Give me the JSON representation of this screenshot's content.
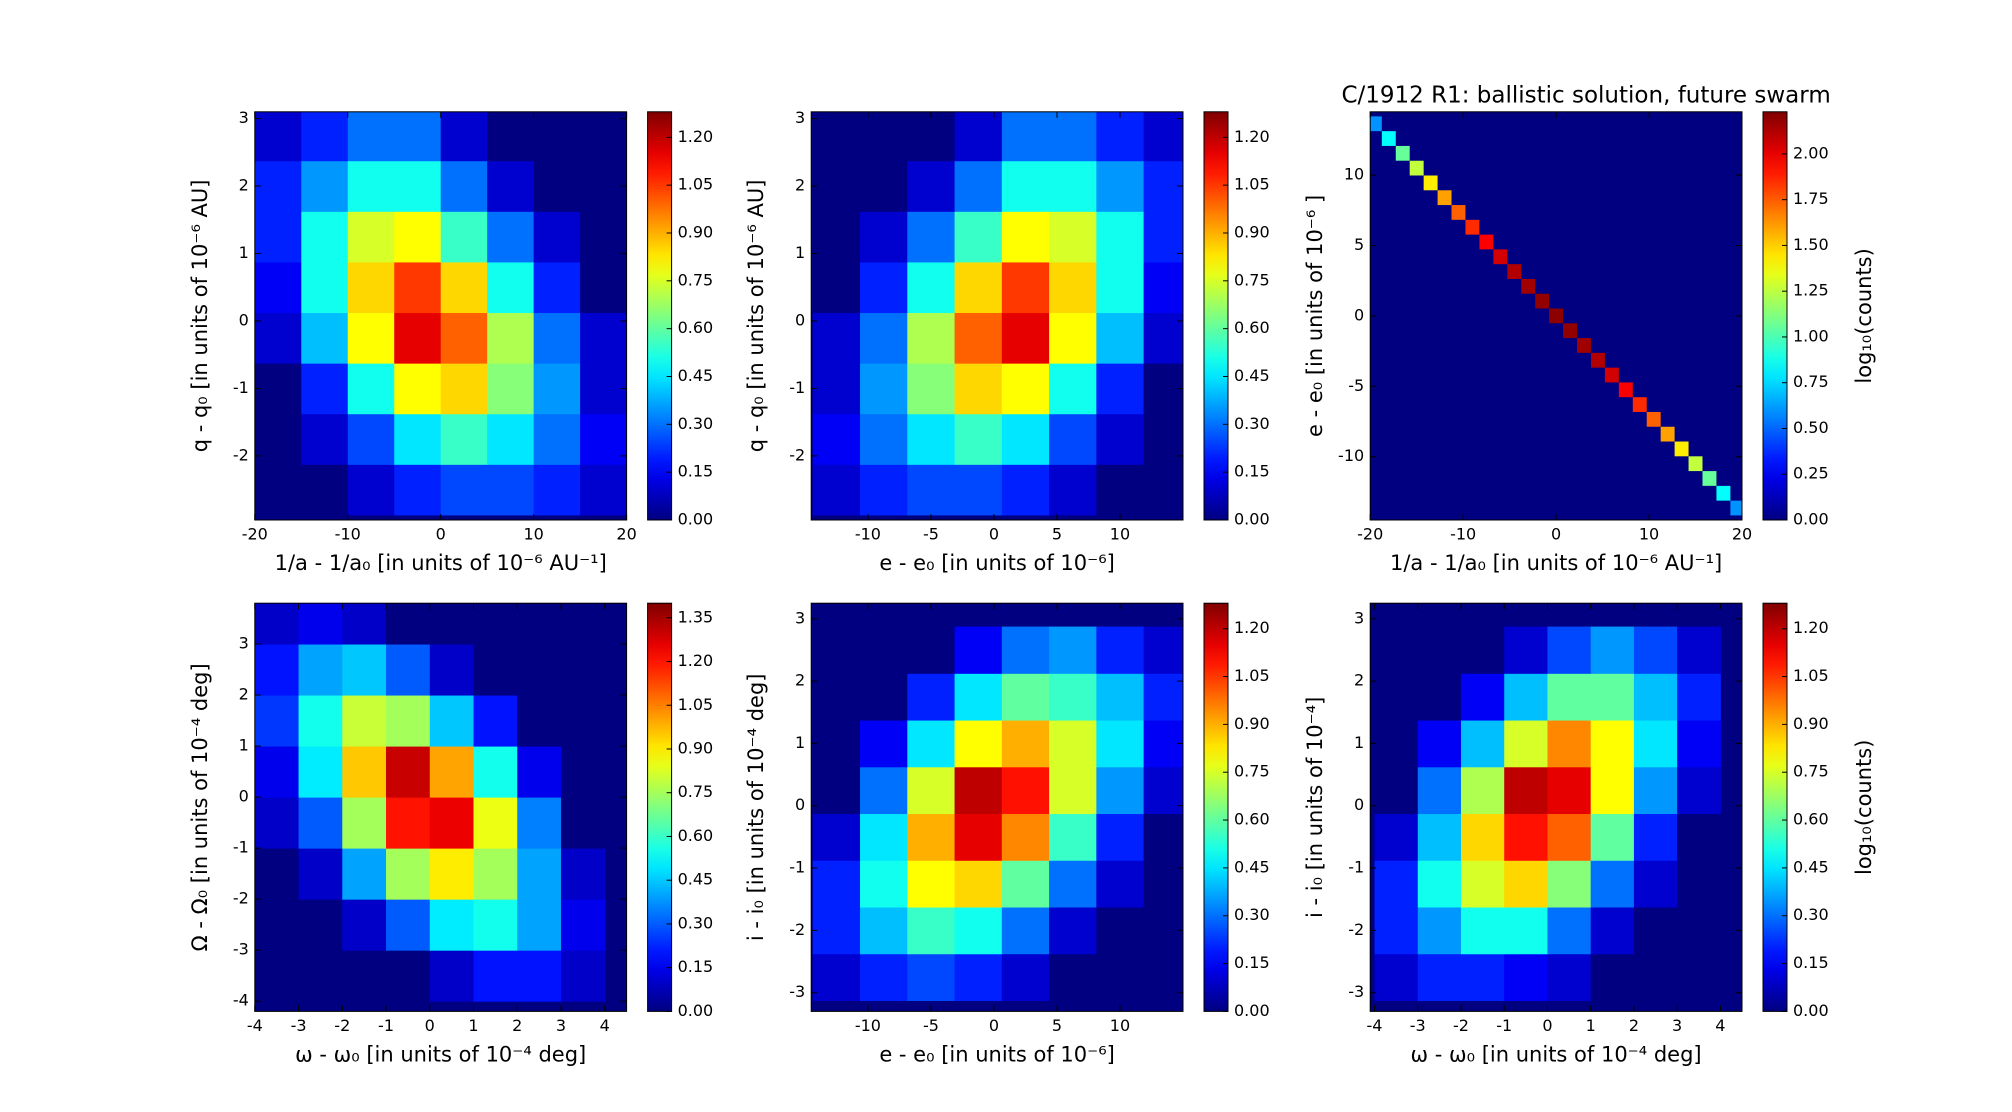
{
  "chart_data": [
    {
      "type": "hexbin",
      "xlabel": "1/a - 1/a₀ [in units of 10⁻⁶ AU⁻¹]",
      "ylabel": "q - q₀ [in units of 10⁻⁶ AU]",
      "xlim": [
        -20,
        20
      ],
      "ylim": [
        -2.95,
        3.1
      ],
      "xticks": [
        -20,
        -10,
        0,
        10,
        20
      ],
      "yticks": [
        -2,
        -1,
        0,
        1,
        2,
        3
      ],
      "x": [
        -17.5,
        -12.5,
        -7.5,
        -2.5,
        2.5,
        7.5,
        12.5,
        17.5
      ],
      "y": [
        -2.5,
        -1.75,
        -1,
        -0.25,
        0.5,
        1.25,
        2,
        2.75
      ],
      "values": [
        [
          0,
          0,
          0.1,
          0.2,
          0.25,
          0.25,
          0.2,
          0.1
        ],
        [
          0,
          0.1,
          0.25,
          0.45,
          0.55,
          0.45,
          0.3,
          0.15
        ],
        [
          0,
          0.2,
          0.5,
          0.8,
          0.85,
          0.65,
          0.35,
          0.1
        ],
        [
          0.1,
          0.4,
          0.8,
          1.15,
          1.0,
          0.7,
          0.3,
          0.1
        ],
        [
          0.15,
          0.5,
          0.85,
          1.05,
          0.85,
          0.5,
          0.2,
          0
        ],
        [
          0.2,
          0.5,
          0.75,
          0.8,
          0.55,
          0.3,
          0.1,
          0
        ],
        [
          0.2,
          0.35,
          0.5,
          0.5,
          0.3,
          0.1,
          0,
          0
        ],
        [
          0.1,
          0.2,
          0.3,
          0.3,
          0.1,
          0,
          0,
          0
        ]
      ],
      "colorbar": {
        "lim": [
          0,
          1.28
        ],
        "ticks": [
          {
            "value": 0,
            "label": "0.00"
          },
          {
            "value": 0.15,
            "label": "0.15"
          },
          {
            "value": 0.3,
            "label": "0.30"
          },
          {
            "value": 0.45,
            "label": "0.45"
          },
          {
            "value": 0.6,
            "label": "0.60"
          },
          {
            "value": 0.75,
            "label": "0.75"
          },
          {
            "value": 0.9,
            "label": "0.90"
          },
          {
            "value": 1.05,
            "label": "1.05"
          },
          {
            "value": 1.2,
            "label": "1.20"
          }
        ]
      }
    },
    {
      "type": "hexbin",
      "xlabel": "e - e₀ [in units of 10⁻⁶]",
      "ylabel": "q - q₀ [in units of 10⁻⁶ AU]",
      "xlim": [
        -14.5,
        15
      ],
      "ylim": [
        -2.95,
        3.1
      ],
      "xticks": [
        -10,
        -5,
        0,
        5,
        10
      ],
      "yticks": [
        -2,
        -1,
        0,
        1,
        2,
        3
      ],
      "x": [
        -12.5,
        -8.75,
        -5,
        -1.25,
        2.5,
        6.25,
        10,
        13.75
      ],
      "y": [
        -2.5,
        -1.75,
        -1,
        -0.25,
        0.5,
        1.25,
        2,
        2.75
      ],
      "values": [
        [
          0.1,
          0.2,
          0.25,
          0.25,
          0.2,
          0.1,
          0,
          0
        ],
        [
          0.15,
          0.3,
          0.45,
          0.55,
          0.45,
          0.25,
          0.1,
          0
        ],
        [
          0.1,
          0.35,
          0.65,
          0.85,
          0.8,
          0.5,
          0.2,
          0
        ],
        [
          0.1,
          0.3,
          0.7,
          1.0,
          1.15,
          0.8,
          0.4,
          0.1
        ],
        [
          0,
          0.2,
          0.5,
          0.85,
          1.05,
          0.85,
          0.5,
          0.15
        ],
        [
          0,
          0.1,
          0.3,
          0.55,
          0.8,
          0.75,
          0.5,
          0.2
        ],
        [
          0,
          0,
          0.1,
          0.3,
          0.5,
          0.5,
          0.35,
          0.2
        ],
        [
          0,
          0,
          0,
          0.1,
          0.3,
          0.3,
          0.2,
          0.1
        ]
      ],
      "colorbar": {
        "lim": [
          0,
          1.28
        ],
        "ticks": [
          {
            "value": 0,
            "label": "0.00"
          },
          {
            "value": 0.15,
            "label": "0.15"
          },
          {
            "value": 0.3,
            "label": "0.30"
          },
          {
            "value": 0.45,
            "label": "0.45"
          },
          {
            "value": 0.6,
            "label": "0.60"
          },
          {
            "value": 0.75,
            "label": "0.75"
          },
          {
            "value": 0.9,
            "label": "0.90"
          },
          {
            "value": 1.05,
            "label": "1.05"
          },
          {
            "value": 1.2,
            "label": "1.20"
          }
        ]
      }
    },
    {
      "type": "hexbin",
      "title": "C/1912 R1:  ballistic solution, future swarm",
      "xlabel": "1/a - 1/a₀ [in units of 10⁻⁶ AU⁻¹]",
      "ylabel": "e - e₀ [in units of 10⁻⁶ ]",
      "xlim": [
        -20,
        20
      ],
      "ylim": [
        -14.5,
        14.5
      ],
      "xticks": [
        -20,
        -10,
        0,
        10,
        20
      ],
      "yticks": [
        -10,
        -5,
        0,
        5,
        10
      ],
      "x": [
        -19.5,
        -18,
        -16.5,
        -15,
        -13.5,
        -12,
        -10.5,
        -9,
        -7.5,
        -6,
        -4.5,
        -3,
        -1.5,
        0,
        1.5,
        3,
        4.5,
        6,
        7.5,
        9,
        10.5,
        12,
        13.5,
        15,
        16.5,
        18,
        19.5
      ],
      "y": [
        13.65,
        12.6,
        11.55,
        10.5,
        9.45,
        8.4,
        7.35,
        6.3,
        5.25,
        4.2,
        3.15,
        2.1,
        1.05,
        0,
        -1.05,
        -2.1,
        -3.15,
        -4.2,
        -5.25,
        -6.3,
        -7.35,
        -8.4,
        -9.45,
        -10.5,
        -11.55,
        -12.6,
        -13.65
      ],
      "values": [
        0.6,
        0.84,
        1.06,
        1.26,
        1.43,
        1.6,
        1.74,
        1.86,
        1.96,
        2.05,
        2.12,
        2.16,
        2.19,
        2.2,
        2.19,
        2.16,
        2.12,
        2.05,
        1.96,
        1.86,
        1.74,
        1.6,
        1.43,
        1.26,
        1.06,
        0.84,
        0.6
      ],
      "colorbar": {
        "lim": [
          0,
          2.23
        ],
        "label": "log₁₀(counts)",
        "ticks": [
          {
            "value": 0,
            "label": "0.00"
          },
          {
            "value": 0.25,
            "label": "0.25"
          },
          {
            "value": 0.5,
            "label": "0.50"
          },
          {
            "value": 0.75,
            "label": "0.75"
          },
          {
            "value": 1,
            "label": "1.00"
          },
          {
            "value": 1.25,
            "label": "1.25"
          },
          {
            "value": 1.5,
            "label": "1.50"
          },
          {
            "value": 1.75,
            "label": "1.75"
          },
          {
            "value": 2,
            "label": "2.00"
          }
        ]
      }
    },
    {
      "type": "hexbin",
      "xlabel": "ω - ω₀ [in units of 10⁻⁴ deg]",
      "ylabel": "Ω - Ω₀ [in units of 10⁻⁴ deg]",
      "xlim": [
        -4,
        4.5
      ],
      "ylim": [
        -4.2,
        3.8
      ],
      "xticks": [
        -4,
        -3,
        -2,
        -1,
        0,
        1,
        2,
        3,
        4
      ],
      "yticks": [
        -4,
        -3,
        -2,
        -1,
        0,
        1,
        2,
        3
      ],
      "x": [
        -3.5,
        -2.5,
        -1.5,
        -0.5,
        0.5,
        1.5,
        2.5,
        3.5
      ],
      "y": [
        -3.5,
        -2.5,
        -1.5,
        -0.5,
        0.5,
        1.5,
        2.5,
        3.5
      ],
      "values": [
        [
          0,
          0,
          0,
          0,
          0.1,
          0.2,
          0.2,
          0.1
        ],
        [
          0,
          0,
          0.1,
          0.3,
          0.5,
          0.55,
          0.4,
          0.15
        ],
        [
          0,
          0.1,
          0.4,
          0.75,
          0.9,
          0.75,
          0.4,
          0.1
        ],
        [
          0.1,
          0.3,
          0.75,
          1.2,
          1.25,
          0.85,
          0.35,
          0
        ],
        [
          0.15,
          0.5,
          0.95,
          1.3,
          1.0,
          0.55,
          0.15,
          0
        ],
        [
          0.25,
          0.55,
          0.8,
          0.75,
          0.45,
          0.2,
          0,
          0
        ],
        [
          0.2,
          0.4,
          0.45,
          0.3,
          0.1,
          0,
          0,
          0
        ],
        [
          0.1,
          0.15,
          0.1,
          0,
          0,
          0,
          0,
          0
        ]
      ],
      "colorbar": {
        "lim": [
          0,
          1.4
        ],
        "ticks": [
          {
            "value": 0,
            "label": "0.00"
          },
          {
            "value": 0.15,
            "label": "0.15"
          },
          {
            "value": 0.3,
            "label": "0.30"
          },
          {
            "value": 0.45,
            "label": "0.45"
          },
          {
            "value": 0.6,
            "label": "0.60"
          },
          {
            "value": 0.75,
            "label": "0.75"
          },
          {
            "value": 0.9,
            "label": "0.90"
          },
          {
            "value": 1.05,
            "label": "1.05"
          },
          {
            "value": 1.2,
            "label": "1.20"
          },
          {
            "value": 1.35,
            "label": "1.35"
          }
        ]
      }
    },
    {
      "type": "hexbin",
      "xlabel": "e - e₀ [in units of 10⁻⁶]",
      "ylabel": "i - i₀ [in units of 10⁻⁴ deg]",
      "xlim": [
        -14.5,
        15
      ],
      "ylim": [
        -3.3,
        3.25
      ],
      "xticks": [
        -10,
        -5,
        0,
        5,
        10
      ],
      "yticks": [
        -3,
        -2,
        -1,
        0,
        1,
        2,
        3
      ],
      "x": [
        -12.5,
        -8.75,
        -5,
        -1.25,
        2.5,
        6.25,
        10,
        13.75
      ],
      "y": [
        -2.75,
        -2,
        -1.25,
        -0.5,
        0.25,
        1,
        1.75,
        2.5
      ],
      "values": [
        [
          0.1,
          0.2,
          0.25,
          0.2,
          0.1,
          0,
          0,
          0
        ],
        [
          0.2,
          0.4,
          0.55,
          0.5,
          0.3,
          0.1,
          0,
          0
        ],
        [
          0.2,
          0.5,
          0.8,
          0.85,
          0.6,
          0.3,
          0.1,
          0
        ],
        [
          0.1,
          0.45,
          0.9,
          1.15,
          0.95,
          0.55,
          0.2,
          0
        ],
        [
          0,
          0.3,
          0.75,
          1.2,
          1.1,
          0.75,
          0.35,
          0.1
        ],
        [
          0,
          0.15,
          0.45,
          0.8,
          0.9,
          0.75,
          0.45,
          0.15
        ],
        [
          0,
          0,
          0.2,
          0.45,
          0.6,
          0.55,
          0.4,
          0.2
        ],
        [
          0,
          0,
          0,
          0.15,
          0.3,
          0.35,
          0.2,
          0.1
        ]
      ],
      "colorbar": {
        "lim": [
          0,
          1.28
        ],
        "ticks": [
          {
            "value": 0,
            "label": "0.00"
          },
          {
            "value": 0.15,
            "label": "0.15"
          },
          {
            "value": 0.3,
            "label": "0.30"
          },
          {
            "value": 0.45,
            "label": "0.45"
          },
          {
            "value": 0.6,
            "label": "0.60"
          },
          {
            "value": 0.75,
            "label": "0.75"
          },
          {
            "value": 0.9,
            "label": "0.90"
          },
          {
            "value": 1.05,
            "label": "1.05"
          },
          {
            "value": 1.2,
            "label": "1.20"
          }
        ]
      }
    },
    {
      "type": "hexbin",
      "xlabel": "ω - ω₀ [in units of 10⁻⁴ deg]",
      "ylabel": "i - i₀ [in units of 10⁻⁴]",
      "xlim": [
        -4.1,
        4.5
      ],
      "ylim": [
        -3.3,
        3.25
      ],
      "xticks": [
        -4,
        -3,
        -2,
        -1,
        0,
        1,
        2,
        3,
        4
      ],
      "yticks": [
        -3,
        -2,
        -1,
        0,
        1,
        2,
        3
      ],
      "x": [
        -3.5,
        -2.5,
        -1.5,
        -0.5,
        0.5,
        1.5,
        2.5,
        3.5
      ],
      "y": [
        -2.75,
        -2,
        -1.25,
        -0.5,
        0.25,
        1,
        1.75,
        2.5
      ],
      "values": [
        [
          0.1,
          0.2,
          0.2,
          0.15,
          0.1,
          0,
          0,
          0
        ],
        [
          0.2,
          0.35,
          0.5,
          0.5,
          0.3,
          0.1,
          0,
          0
        ],
        [
          0.2,
          0.5,
          0.75,
          0.85,
          0.65,
          0.3,
          0.1,
          0
        ],
        [
          0.1,
          0.4,
          0.85,
          1.1,
          1.0,
          0.6,
          0.2,
          0
        ],
        [
          0,
          0.3,
          0.7,
          1.2,
          1.15,
          0.8,
          0.35,
          0.1
        ],
        [
          0,
          0.15,
          0.4,
          0.75,
          0.95,
          0.8,
          0.45,
          0.15
        ],
        [
          0,
          0,
          0.15,
          0.4,
          0.6,
          0.6,
          0.4,
          0.2
        ],
        [
          0,
          0,
          0,
          0.1,
          0.25,
          0.35,
          0.25,
          0.1
        ]
      ],
      "colorbar": {
        "lim": [
          0,
          1.28
        ],
        "label": "log₁₀(counts)",
        "ticks": [
          {
            "value": 0,
            "label": "0.00"
          },
          {
            "value": 0.15,
            "label": "0.15"
          },
          {
            "value": 0.3,
            "label": "0.30"
          },
          {
            "value": 0.45,
            "label": "0.45"
          },
          {
            "value": 0.6,
            "label": "0.60"
          },
          {
            "value": 0.75,
            "label": "0.75"
          },
          {
            "value": 0.9,
            "label": "0.90"
          },
          {
            "value": 1.05,
            "label": "1.05"
          },
          {
            "value": 1.2,
            "label": "1.20"
          }
        ]
      }
    }
  ]
}
